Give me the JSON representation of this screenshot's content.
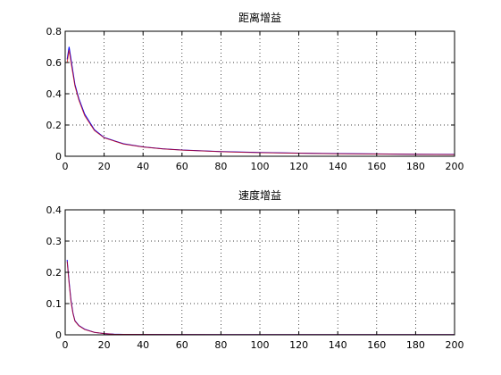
{
  "chart_data": [
    {
      "type": "line",
      "title": "距离增益",
      "xlim": [
        0,
        200
      ],
      "ylim": [
        0,
        0.8
      ],
      "xticks": [
        0,
        20,
        40,
        60,
        80,
        100,
        120,
        140,
        160,
        180,
        200
      ],
      "yticks": [
        0,
        0.2,
        0.4,
        0.6,
        0.8
      ],
      "xtick_labels": [
        "0",
        "20",
        "40",
        "60",
        "80",
        "100",
        "120",
        "140",
        "160",
        "180",
        "200"
      ],
      "ytick_labels": [
        "0",
        "0.2",
        "0.4",
        "0.6",
        "0.8"
      ],
      "grid": true,
      "series": [
        {
          "color": "#0000ff",
          "x": [
            1,
            2,
            3,
            5,
            7,
            10,
            15,
            20,
            30,
            40,
            50,
            60,
            80,
            100,
            120,
            140,
            160,
            180,
            200
          ],
          "y": [
            0.62,
            0.7,
            0.62,
            0.46,
            0.37,
            0.27,
            0.17,
            0.12,
            0.08,
            0.06,
            0.048,
            0.04,
            0.03,
            0.024,
            0.02,
            0.017,
            0.015,
            0.013,
            0.012
          ]
        },
        {
          "color": "#cc0000",
          "x": [
            1,
            2,
            3,
            5,
            7,
            10,
            15,
            20,
            30,
            40,
            50,
            60,
            80,
            100,
            120,
            140,
            160,
            180,
            200
          ],
          "y": [
            0.6,
            0.68,
            0.6,
            0.45,
            0.36,
            0.26,
            0.165,
            0.118,
            0.078,
            0.059,
            0.047,
            0.039,
            0.029,
            0.023,
            0.019,
            0.016,
            0.014,
            0.012,
            0.011
          ]
        }
      ]
    },
    {
      "type": "line",
      "title": "速度增益",
      "xlim": [
        0,
        200
      ],
      "ylim": [
        0,
        0.4
      ],
      "xticks": [
        0,
        20,
        40,
        60,
        80,
        100,
        120,
        140,
        160,
        180,
        200
      ],
      "yticks": [
        0,
        0.1,
        0.2,
        0.3,
        0.4
      ],
      "xtick_labels": [
        "0",
        "20",
        "40",
        "60",
        "80",
        "100",
        "120",
        "140",
        "160",
        "180",
        "200"
      ],
      "ytick_labels": [
        "0",
        "0.1",
        "0.2",
        "0.3",
        "0.4"
      ],
      "grid": true,
      "series": [
        {
          "color": "#0000ff",
          "x": [
            1,
            2,
            3,
            4,
            5,
            7,
            10,
            15,
            20,
            25,
            30,
            50,
            100,
            150,
            200
          ],
          "y": [
            0.24,
            0.17,
            0.11,
            0.07,
            0.045,
            0.03,
            0.018,
            0.008,
            0.004,
            0.002,
            0.0015,
            0.001,
            0.0008,
            0.0008,
            0.0008
          ]
        },
        {
          "color": "#cc0000",
          "x": [
            1,
            2,
            3,
            4,
            5,
            7,
            10,
            15,
            20,
            25,
            30,
            50,
            100,
            150,
            200
          ],
          "y": [
            0.235,
            0.165,
            0.105,
            0.068,
            0.044,
            0.029,
            0.017,
            0.0078,
            0.0038,
            0.0019,
            0.0014,
            0.001,
            0.0008,
            0.0008,
            0.0008
          ]
        }
      ]
    }
  ]
}
